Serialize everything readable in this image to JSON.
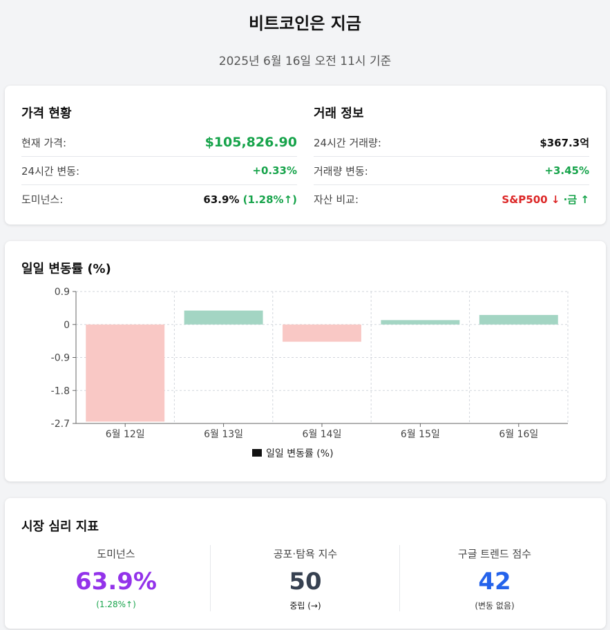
{
  "header": {
    "title": "비트코인은 지금",
    "subtitle": "2025년 6월 16일 오전 11시 기준"
  },
  "price_card": {
    "title": "가격 현황",
    "rows": [
      {
        "label": "현재 가격:",
        "value": "$105,826.90"
      },
      {
        "label": "24시간 변동:",
        "value": "+0.33%"
      },
      {
        "label": "도미넌스:",
        "value": "63.9%",
        "extra": "(1.28%↑)"
      }
    ]
  },
  "trade_card": {
    "title": "거래 정보",
    "rows": [
      {
        "label": "24시간 거래량:",
        "value": "$367.3억"
      },
      {
        "label": "거래량 변동:",
        "value": "+3.45%"
      },
      {
        "label": "자산 비교:",
        "sp_label": "S&P500",
        "sp_arrow": "↓",
        "sep": "·",
        "gold_label": "금",
        "gold_arrow": "↑"
      }
    ]
  },
  "chart_card": {
    "title": "일일 변동률 (%)"
  },
  "chart_data": {
    "type": "bar",
    "title": "일일 변동률 (%)",
    "categories": [
      "6월 12일",
      "6월 13일",
      "6월 14일",
      "6월 15일",
      "6월 16일"
    ],
    "values": [
      -2.65,
      0.38,
      -0.47,
      0.12,
      0.26
    ],
    "ylim": [
      -2.7,
      0.9
    ],
    "yticks": [
      0.9,
      0,
      -0.9,
      -1.8,
      -2.7
    ],
    "ytick_labels": [
      "0.9",
      "0",
      "-0.9",
      "-1.8",
      "-2.7"
    ],
    "grid": true,
    "legend": {
      "label": "일일 변동률 (%)",
      "position": "bottom"
    },
    "colors": {
      "positive": "#a3d5c3",
      "negative": "#f9c8c5",
      "legend": "#111111"
    }
  },
  "sentiment_card": {
    "title": "시장 심리 지표",
    "metrics": [
      {
        "label": "도미넌스",
        "value": "63.9%",
        "sub": "(1.28%↑)",
        "color": "#9333ea",
        "sub_color": "#16a34a"
      },
      {
        "label": "공포·탐욕 지수",
        "value": "50",
        "sub": "중립 (→)",
        "color": "#374151",
        "sub_color": "#111111"
      },
      {
        "label": "구글 트렌드 점수",
        "value": "42",
        "sub": "(변동 없음)",
        "color": "#2563eb",
        "sub_color": "#333333"
      }
    ]
  }
}
